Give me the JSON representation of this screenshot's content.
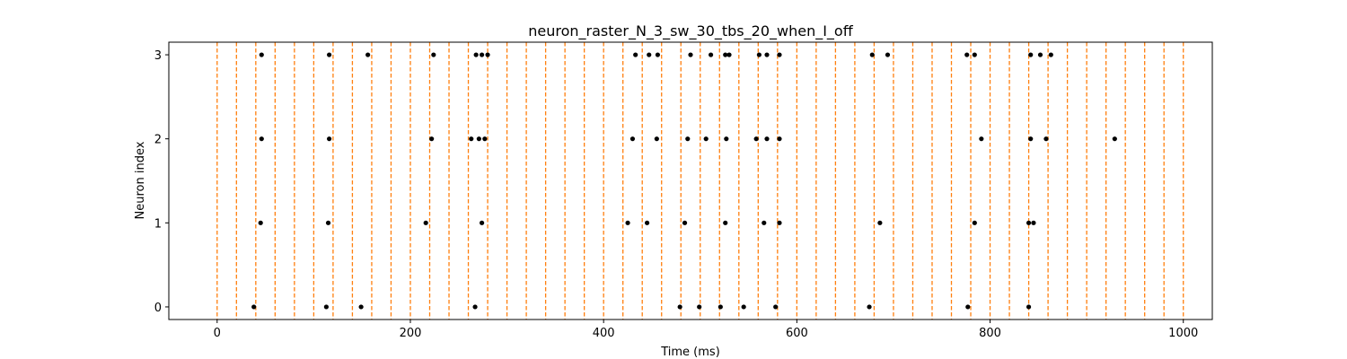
{
  "chart_data": {
    "type": "scatter",
    "title": "neuron_raster_N_3_sw_30_tbs_20_when_I_off",
    "xlabel": "Time (ms)",
    "ylabel": "Neuron index",
    "xlim": [
      -50,
      1030
    ],
    "ylim": [
      -0.15,
      3.15
    ],
    "xticks": [
      0,
      200,
      400,
      600,
      800,
      1000
    ],
    "yticks": [
      0,
      1,
      2,
      3
    ],
    "grid": false,
    "marker_color": "#000000",
    "vline_color": "#ff7f0e",
    "vlines_x": [
      0,
      20,
      40,
      60,
      80,
      100,
      120,
      140,
      160,
      180,
      200,
      220,
      240,
      260,
      280,
      300,
      320,
      340,
      360,
      380,
      400,
      420,
      440,
      460,
      480,
      500,
      520,
      540,
      560,
      580,
      600,
      620,
      640,
      660,
      680,
      700,
      720,
      740,
      760,
      780,
      800,
      820,
      840,
      860,
      880,
      900,
      920,
      940,
      960,
      980,
      1000
    ],
    "series": [
      {
        "neuron": 0,
        "x": [
          38,
          113,
          149,
          267,
          479,
          499,
          521,
          545,
          578,
          675,
          777,
          840
        ]
      },
      {
        "neuron": 1,
        "x": [
          45,
          115,
          216,
          274,
          425,
          445,
          484,
          526,
          566,
          582,
          686,
          784,
          840,
          845
        ]
      },
      {
        "neuron": 2,
        "x": [
          46,
          116,
          222,
          263,
          271,
          277,
          430,
          455,
          487,
          506,
          527,
          558,
          569,
          582,
          791,
          842,
          858,
          929
        ]
      },
      {
        "neuron": 3,
        "x": [
          46,
          116,
          156,
          224,
          268,
          274,
          280,
          433,
          447,
          456,
          490,
          511,
          526,
          530,
          561,
          569,
          582,
          678,
          694,
          776,
          784,
          842,
          852,
          863
        ]
      }
    ]
  }
}
